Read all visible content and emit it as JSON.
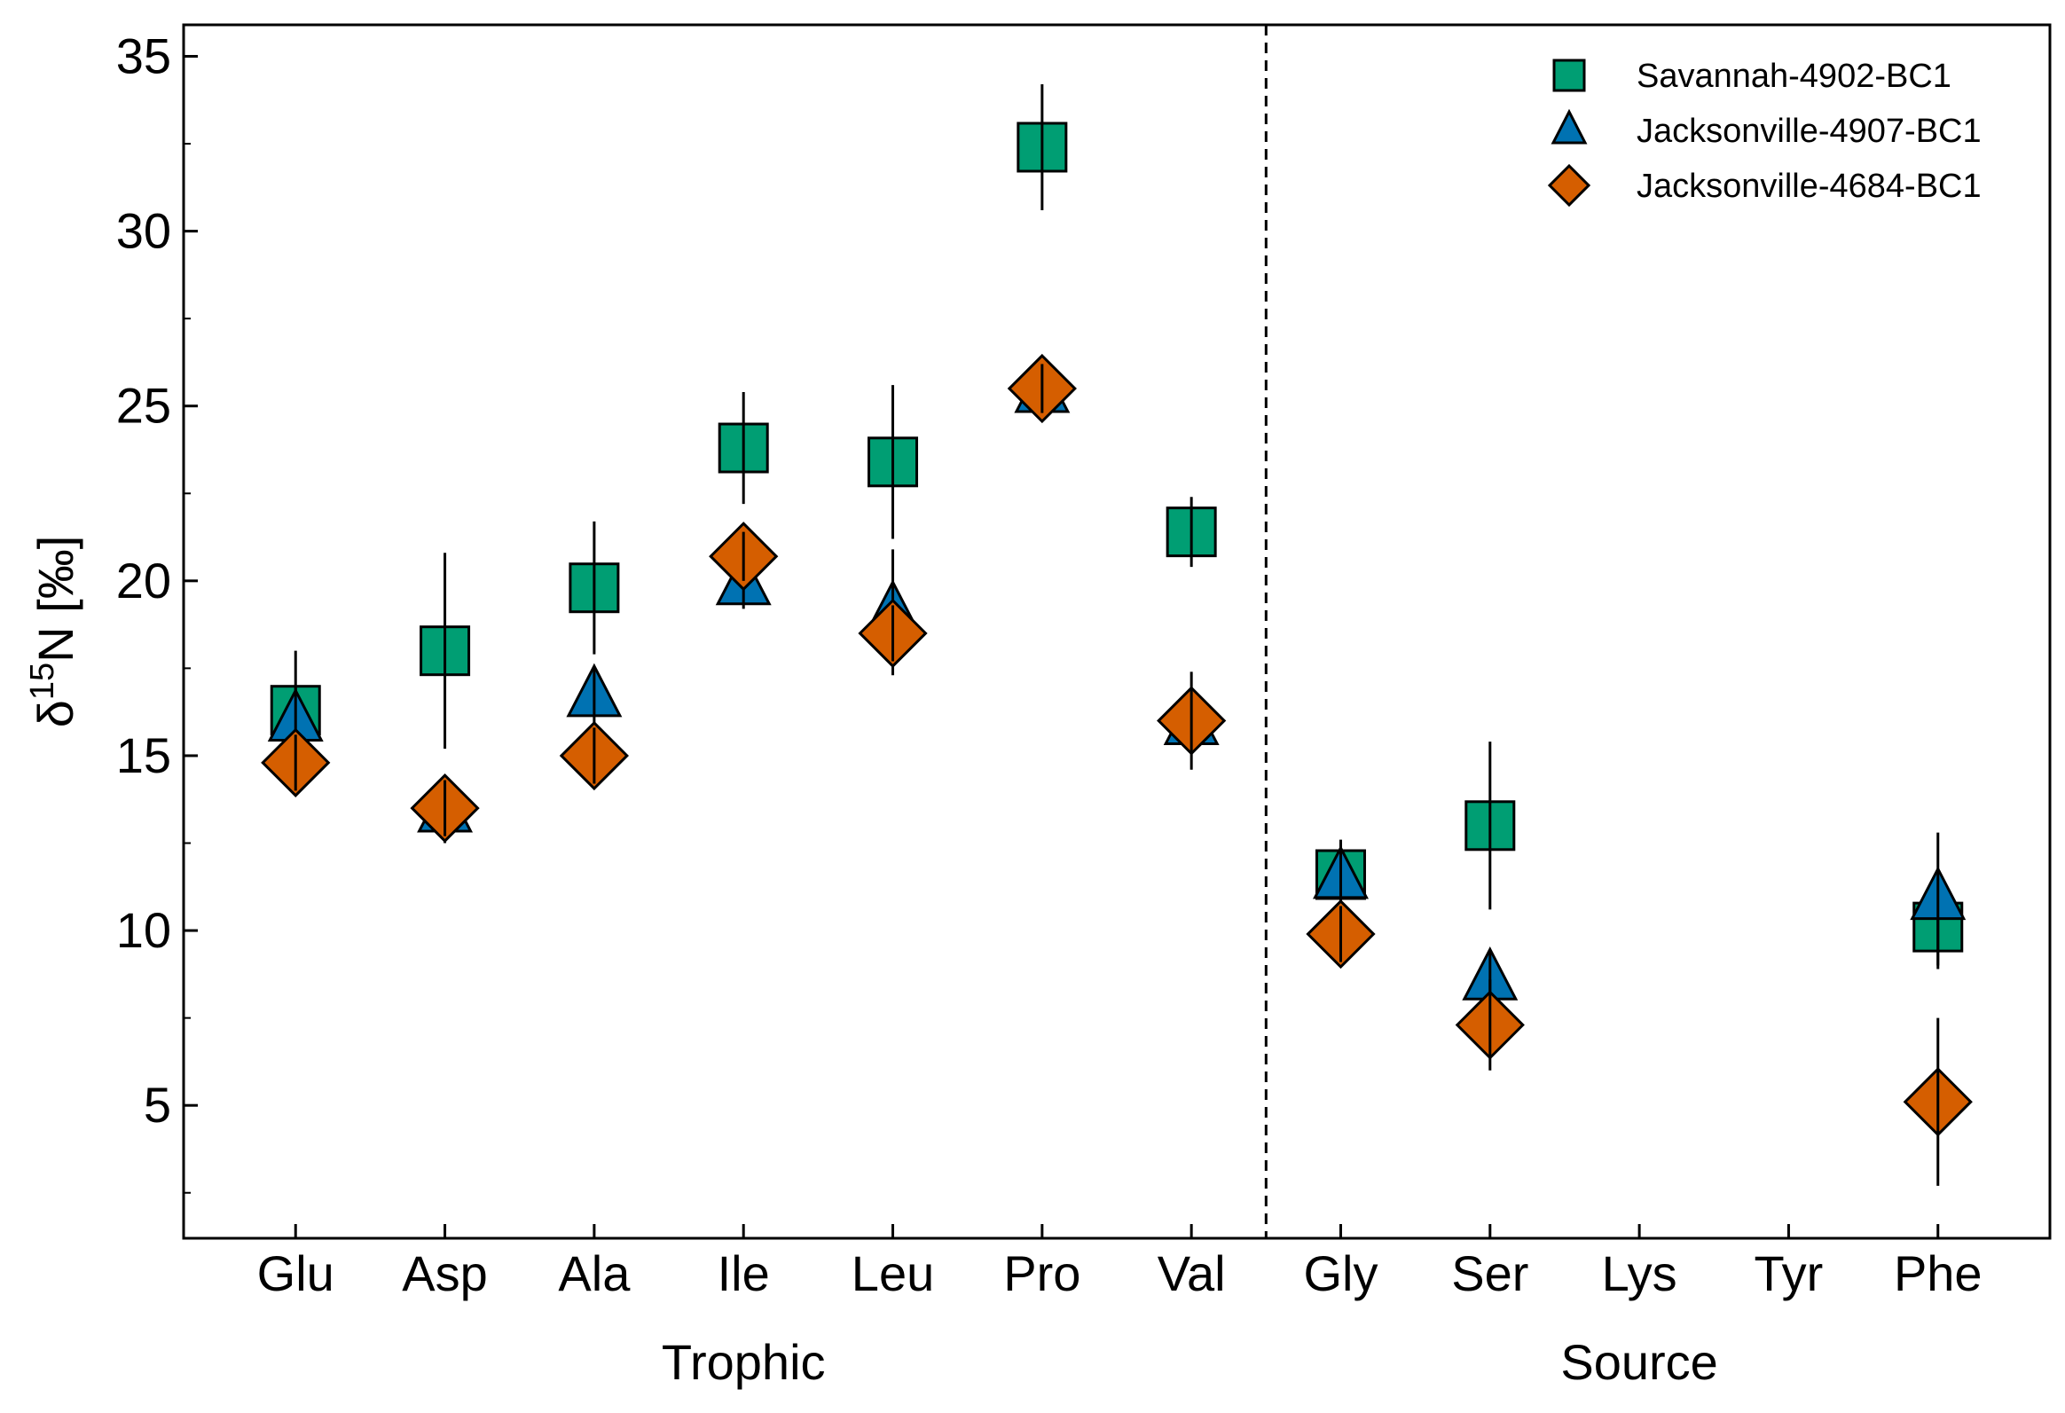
{
  "chart_data": {
    "type": "scatter",
    "ylabel": "δ15N [‰]",
    "ylabel_base": "δ",
    "ylabel_sup": "15",
    "ylabel_rest": "N [‰]",
    "ylim": [
      1.2,
      35.9
    ],
    "yticks": [
      5,
      10,
      15,
      20,
      25,
      30,
      35
    ],
    "categories": [
      "Glu",
      "Asp",
      "Ala",
      "Ile",
      "Leu",
      "Pro",
      "Val",
      "Gly",
      "Ser",
      "Lys",
      "Tyr",
      "Phe"
    ],
    "groups": [
      {
        "label": "Trophic",
        "categories": [
          "Glu",
          "Asp",
          "Ala",
          "Ile",
          "Leu",
          "Pro",
          "Val"
        ]
      },
      {
        "label": "Source",
        "categories": [
          "Gly",
          "Ser",
          "Lys",
          "Tyr",
          "Phe"
        ]
      }
    ],
    "divider_after": "Val",
    "legend_position": "top-right",
    "series": [
      {
        "name": "Savannah-4902-BC1",
        "marker": "square",
        "color": "#009E73",
        "values": [
          16.3,
          18.0,
          19.8,
          23.8,
          23.4,
          32.4,
          21.4,
          11.6,
          13.0,
          null,
          null,
          10.1
        ],
        "errors": [
          1.7,
          2.8,
          1.9,
          1.6,
          2.2,
          1.8,
          1.0,
          1.0,
          2.4,
          null,
          null,
          1.2
        ]
      },
      {
        "name": "Jacksonville-4907-BC1",
        "marker": "triangle",
        "color": "#0072B2",
        "values": [
          16.0,
          13.4,
          16.7,
          19.9,
          19.1,
          25.4,
          15.9,
          11.5,
          8.6,
          null,
          null,
          10.9
        ],
        "errors": [
          1.0,
          0.9,
          0.8,
          0.7,
          1.8,
          0.6,
          0.7,
          1.0,
          0.8,
          null,
          null,
          1.9
        ]
      },
      {
        "name": "Jacksonville-4684-BC1",
        "marker": "diamond",
        "color": "#D55E00",
        "values": [
          14.8,
          13.5,
          15.0,
          20.7,
          18.5,
          25.5,
          16.0,
          9.9,
          7.3,
          null,
          null,
          5.1
        ],
        "errors": [
          0.8,
          0.8,
          0.8,
          0.7,
          0.8,
          0.7,
          1.4,
          0.8,
          1.3,
          null,
          null,
          2.4
        ]
      }
    ]
  }
}
